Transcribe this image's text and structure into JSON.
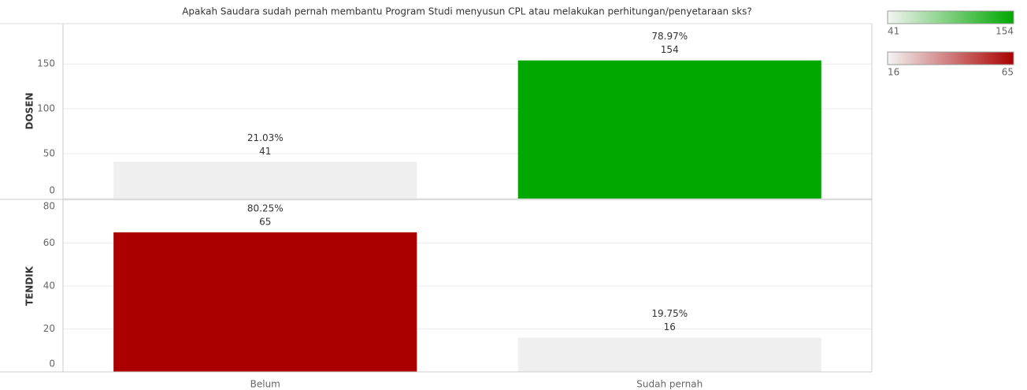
{
  "title": "Apakah Saudara sudah pernah membantu Program Studi menyusun CPL atau melakukan perhitungan/penyetaraan sks?",
  "categories": [
    "Belum",
    "Sudah pernah"
  ],
  "chart_data": [
    {
      "type": "bar",
      "row_label": "DOSEN",
      "values": [
        41,
        154
      ],
      "share_labels": [
        "21.03%",
        "78.97%"
      ],
      "colors": [
        "#efefef",
        "#00a800"
      ],
      "ylim": [
        0,
        195
      ],
      "yticks": [
        0,
        50,
        100,
        150
      ],
      "grid": true,
      "color_legend": {
        "min": 41,
        "max": 154,
        "colors": [
          "#f4f4f4",
          "#00a800"
        ]
      }
    },
    {
      "type": "bar",
      "row_label": "TENDIK",
      "values": [
        65,
        16
      ],
      "share_labels": [
        "80.25%",
        "19.75%"
      ],
      "colors": [
        "#aa0000",
        "#efefef"
      ],
      "ylim": [
        0,
        80
      ],
      "yticks": [
        0,
        20,
        40,
        60,
        80
      ],
      "grid": true,
      "color_legend": {
        "min": 16,
        "max": 65,
        "colors": [
          "#f4f4f4",
          "#aa0000"
        ]
      }
    }
  ]
}
